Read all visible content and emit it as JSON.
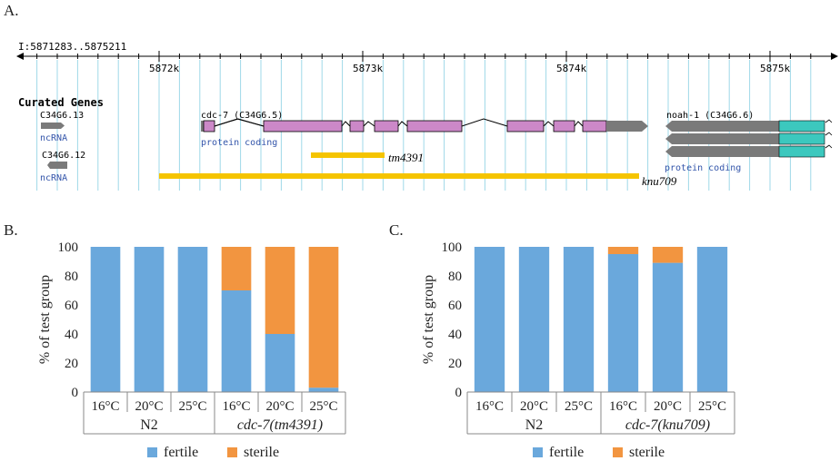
{
  "panels": {
    "a": "A.",
    "b": "B.",
    "c": "C."
  },
  "genome_browser": {
    "range": "I:5871283..5875211",
    "coord_start": 5871283,
    "coord_end": 5875211,
    "ticks": [
      {
        "value": 5872000,
        "label": "5872k"
      },
      {
        "value": 5873000,
        "label": "5873k"
      },
      {
        "value": 5874000,
        "label": "5874k"
      },
      {
        "value": 5875000,
        "label": "5875k"
      }
    ],
    "track_title": "Curated Genes",
    "genes": {
      "c34g6_13": {
        "name": "C34G6.13",
        "type": "ncRNA"
      },
      "c34g6_12": {
        "name": "C34G6.12",
        "type": "ncRNA"
      },
      "cdc7": {
        "name": "cdc-7 (C34G6.5)",
        "type": "protein coding"
      },
      "noah1": {
        "name": "noah-1 (C34G6.6)",
        "type": "protein coding"
      }
    },
    "deletions": {
      "tm4391": "tm4391",
      "knu709": "knu709"
    },
    "colors": {
      "exon": "#cc88c8",
      "utr": "#7a7a7a",
      "noah_exon": "#3cc8be",
      "deletion": "#f5c400",
      "ncrna_label": "#3355aa",
      "grid": "#9fd8e8"
    }
  },
  "chart_data": [
    {
      "type": "bar",
      "stacked": true,
      "ylabel": "% of test group",
      "ylim": [
        0,
        100
      ],
      "yticks": [
        0,
        20,
        40,
        60,
        80,
        100
      ],
      "categories": [
        "16°C",
        "20°C",
        "25°C",
        "16°C",
        "20°C",
        "25°C"
      ],
      "groups": [
        {
          "name": "N2",
          "italic": false
        },
        {
          "name": "cdc-7(tm4391)",
          "italic": true
        }
      ],
      "series": [
        {
          "name": "fertile",
          "color": "#6aa8dc",
          "values": [
            100,
            100,
            100,
            70,
            40,
            3
          ]
        },
        {
          "name": "sterile",
          "color": "#f29540",
          "values": [
            0,
            0,
            0,
            30,
            60,
            97
          ]
        }
      ],
      "legend": "bottom"
    },
    {
      "type": "bar",
      "stacked": true,
      "ylabel": "% of test group",
      "ylim": [
        0,
        100
      ],
      "yticks": [
        0,
        20,
        40,
        60,
        80,
        100
      ],
      "categories": [
        "16°C",
        "20°C",
        "25°C",
        "16°C",
        "20°C",
        "25°C"
      ],
      "groups": [
        {
          "name": "N2",
          "italic": false
        },
        {
          "name": "cdc-7(knu709)",
          "italic": true
        }
      ],
      "series": [
        {
          "name": "fertile",
          "color": "#6aa8dc",
          "values": [
            100,
            100,
            100,
            95,
            89,
            100
          ]
        },
        {
          "name": "sterile",
          "color": "#f29540",
          "values": [
            0,
            0,
            0,
            5,
            11,
            0
          ]
        }
      ],
      "legend": "bottom"
    }
  ]
}
